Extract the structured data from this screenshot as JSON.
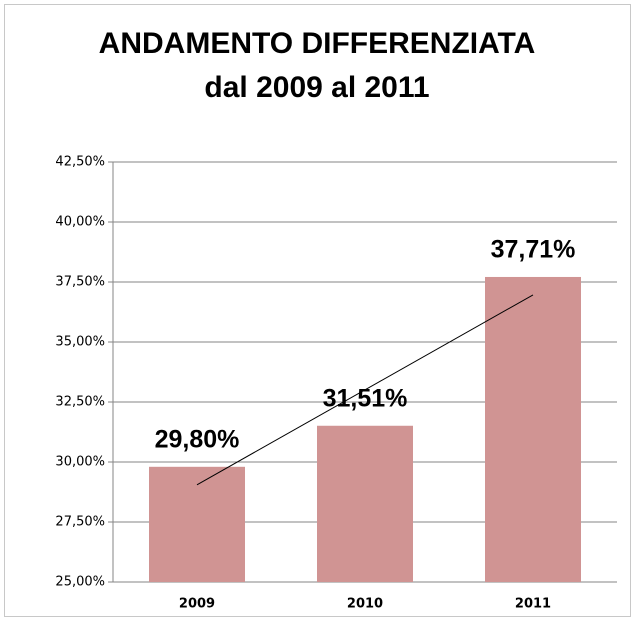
{
  "chart_data": {
    "type": "bar",
    "title": "ANDAMENTO DIFFERENZIATA dal 2009 al 2011",
    "categories": [
      "2009",
      "2010",
      "2011"
    ],
    "values": [
      29.8,
      31.51,
      37.71
    ],
    "value_labels": [
      "29,80%",
      "31,51%",
      "37,71%"
    ],
    "color": "#d09493",
    "trendline": true,
    "ylim": [
      25,
      42.5
    ],
    "yticks": [
      {
        "value": 25,
        "label": "25,00%"
      },
      {
        "value": 27.5,
        "label": "27,50%"
      },
      {
        "value": 30,
        "label": "30,00%"
      },
      {
        "value": 32.5,
        "label": "32,50%"
      },
      {
        "value": 35,
        "label": "35,00%"
      },
      {
        "value": 37.5,
        "label": "37,50%"
      },
      {
        "value": 40,
        "label": "40,00%"
      },
      {
        "value": 42.5,
        "label": "42,50%"
      }
    ],
    "grid": true
  }
}
